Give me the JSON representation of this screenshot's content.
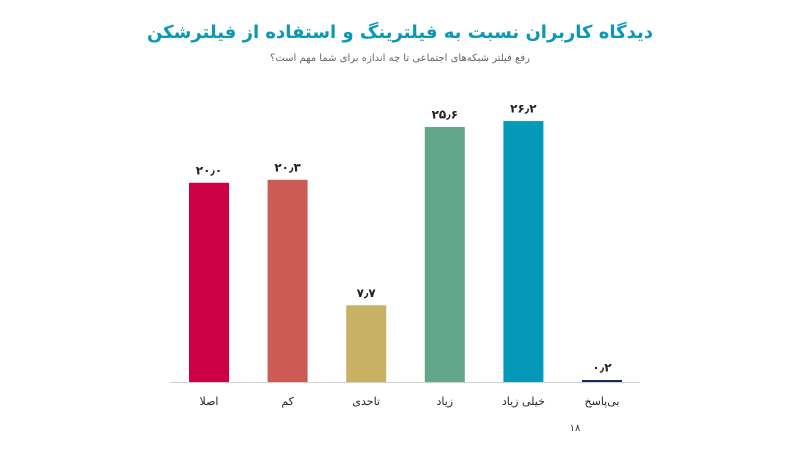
{
  "chart_data": {
    "type": "bar",
    "title": "دیدگاه کاربران نسبت به فیلترینگ و استفاده از فیلترشکن",
    "subtitle": "رفع فیلتر شبکه‌های اجتماعی تا چه اندازه برای شما مهم است؟",
    "categories": [
      "اصلا",
      "کم",
      "تاحدی",
      "زیاد",
      "خیلی زیاد",
      "بی‌پاسخ"
    ],
    "values": [
      20.0,
      20.3,
      7.7,
      25.6,
      26.2,
      0.2
    ],
    "value_labels": [
      "۲۰٫۰",
      "۲۰٫۳",
      "۷٫۷",
      "۲۵٫۶",
      "۲۶٫۲",
      "۰٫۲"
    ],
    "colors": [
      "#cc0044",
      "#cc5a55",
      "#c8b064",
      "#62a78c",
      "#0499b8",
      "#1a2a5e"
    ]
  },
  "page_number": "۱۸"
}
